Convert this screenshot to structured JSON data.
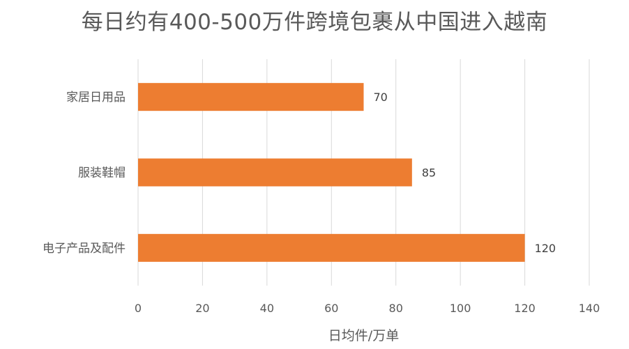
{
  "chart_data": {
    "type": "bar",
    "orientation": "horizontal",
    "title": "每日约有400-500万件跨境包裹从中国进入越南",
    "xlabel": "日均件/万单",
    "ylabel": "",
    "categories": [
      "家居日用品",
      "服装鞋帽",
      "电子产品及配件"
    ],
    "values": [
      70,
      85,
      120
    ],
    "data_labels": [
      "70",
      "85",
      "120"
    ],
    "xlim": [
      0,
      140
    ],
    "xticks": [
      0,
      20,
      40,
      60,
      80,
      100,
      120,
      140
    ],
    "xtick_labels": [
      "0",
      "20",
      "40",
      "60",
      "80",
      "100",
      "120",
      "140"
    ],
    "grid": true,
    "legend": "none",
    "colors": {
      "bar": "#ED7D31",
      "grid": "#D9D9D9",
      "text": "#595959"
    }
  }
}
